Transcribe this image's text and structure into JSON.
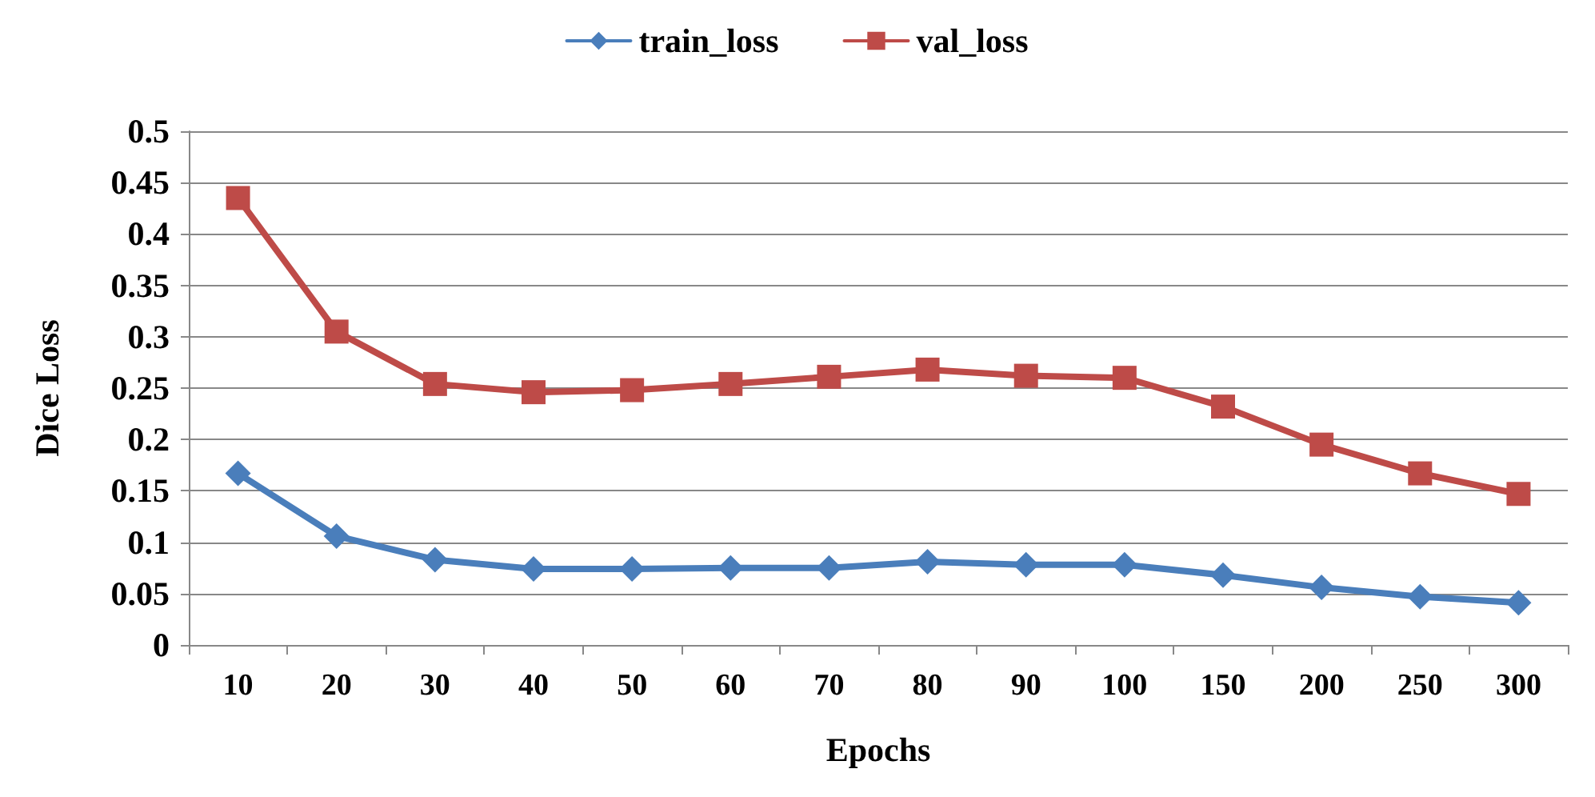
{
  "chart_data": {
    "type": "line",
    "xlabel": "Epochs",
    "ylabel": "Dice Loss",
    "categories": [
      "10",
      "20",
      "30",
      "40",
      "50",
      "60",
      "70",
      "80",
      "90",
      "100",
      "150",
      "200",
      "250",
      "300"
    ],
    "series": [
      {
        "name": "train_loss",
        "color": "#4a7ebb",
        "marker": "diamond",
        "values": [
          0.167,
          0.106,
          0.083,
          0.074,
          0.074,
          0.075,
          0.075,
          0.081,
          0.078,
          0.078,
          0.068,
          0.056,
          0.047,
          0.041
        ]
      },
      {
        "name": "val_loss",
        "color": "#be4b48",
        "marker": "square",
        "values": [
          0.435,
          0.305,
          0.254,
          0.246,
          0.248,
          0.254,
          0.261,
          0.268,
          0.262,
          0.26,
          0.232,
          0.195,
          0.167,
          0.147
        ]
      }
    ],
    "ylim": [
      0,
      0.5
    ],
    "yticks": [
      0,
      0.05,
      0.1,
      0.15,
      0.2,
      0.25,
      0.3,
      0.35,
      0.4,
      0.45,
      0.5
    ],
    "grid": "y",
    "legend": "top",
    "line_style": "solid"
  }
}
